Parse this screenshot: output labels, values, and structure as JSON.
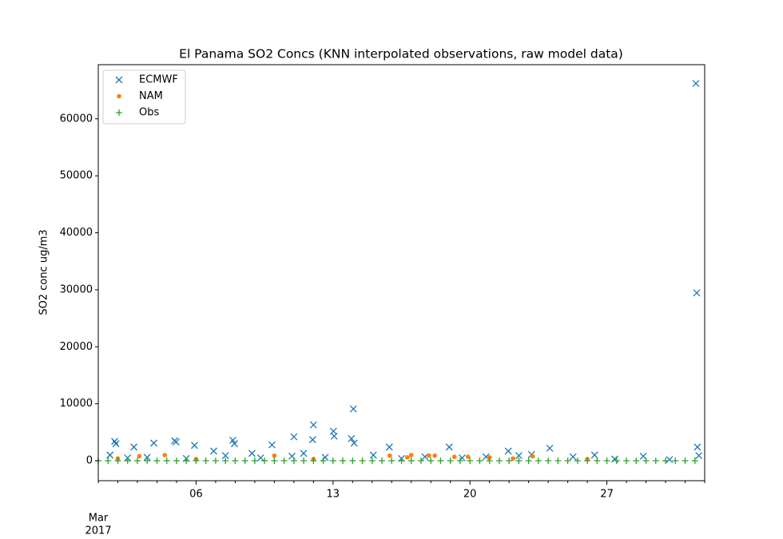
{
  "chart_data": {
    "type": "scatter",
    "title": "El Panama SO2 Concs (KNN interpolated observations, raw model data)",
    "ylabel": "SO2 conc ug/m3",
    "x_month": "Mar",
    "x_year": "2017",
    "xlim": [
      1,
      32
    ],
    "xticks": [
      {
        "value": 6,
        "label": "06"
      },
      {
        "value": 13,
        "label": "13"
      },
      {
        "value": 20,
        "label": "20"
      },
      {
        "value": 27,
        "label": "27"
      }
    ],
    "xminorticks": [
      1,
      2,
      3,
      4,
      5,
      7,
      8,
      9,
      10,
      11,
      12,
      14,
      15,
      16,
      17,
      18,
      19,
      21,
      22,
      23,
      24,
      25,
      26,
      28,
      29,
      30,
      31,
      32
    ],
    "ylim": [
      -3500,
      69500
    ],
    "yticks": [
      0,
      10000,
      20000,
      30000,
      40000,
      50000,
      60000
    ],
    "legend": "upper left",
    "series": [
      {
        "name": "ECMWF",
        "color": "#1f77b4",
        "marker": "x",
        "x": [
          31.55,
          31.59,
          14.04,
          12.0,
          13.02,
          13.06,
          11.0,
          1.84,
          1.9,
          4.9,
          4.98,
          7.88,
          7.96,
          3.84,
          2.82,
          5.92,
          9.88,
          11.96,
          13.94,
          14.08,
          15.88,
          18.94,
          21.96,
          24.08,
          31.63,
          6.9,
          8.86,
          15.06,
          20.82,
          23.15,
          25.27,
          26.37,
          28.86,
          10.9,
          1.6,
          7.5,
          2.5,
          3.5,
          5.5,
          9.3,
          11.5,
          12.6,
          16.5,
          17.7,
          19.6,
          22.5,
          27.4,
          30.2,
          31.7
        ],
        "values": [
          66200,
          29450,
          9100,
          6300,
          5200,
          4300,
          4200,
          3400,
          3000,
          3500,
          3300,
          3600,
          3000,
          3100,
          2400,
          2700,
          2800,
          3700,
          3900,
          3100,
          2400,
          2400,
          1700,
          2200,
          2400,
          1700,
          1300,
          1000,
          700,
          1100,
          700,
          1000,
          800,
          800,
          1000,
          900,
          500,
          600,
          400,
          500,
          1300,
          600,
          400,
          700,
          500,
          900,
          300,
          200,
          900
        ]
      },
      {
        "name": "NAM",
        "color": "#ff7f0e",
        "marker": "o",
        "x": [
          3.1,
          4.4,
          10.0,
          15.9,
          17.0,
          17.9,
          18.2,
          19.2,
          19.9,
          21.0,
          23.2,
          2.0,
          6.0,
          12.0,
          26.0,
          16.8,
          22.2
        ],
        "values": [
          800,
          1000,
          900,
          900,
          1000,
          900,
          900,
          700,
          700,
          600,
          800,
          400,
          300,
          300,
          300,
          600,
          400
        ]
      },
      {
        "name": "Obs",
        "color": "#2ca02c",
        "marker": "+",
        "x": [
          1.0,
          1.5,
          2.0,
          2.5,
          3.0,
          3.5,
          4.0,
          4.5,
          5.0,
          5.5,
          6.0,
          6.5,
          7.0,
          7.5,
          8.0,
          8.5,
          9.0,
          9.5,
          10.0,
          10.5,
          11.0,
          11.5,
          12.0,
          12.5,
          13.0,
          13.5,
          14.0,
          14.5,
          15.0,
          15.5,
          16.0,
          16.5,
          17.0,
          17.5,
          18.0,
          18.5,
          19.0,
          19.5,
          20.0,
          20.5,
          21.0,
          21.5,
          22.0,
          22.5,
          23.0,
          23.5,
          24.0,
          24.5,
          25.0,
          25.5,
          26.0,
          26.5,
          27.0,
          27.5,
          28.0,
          28.5,
          29.0,
          29.5,
          30.0,
          30.5,
          31.0,
          31.5
        ],
        "values": [
          0,
          0,
          0,
          0,
          0,
          0,
          0,
          0,
          0,
          0,
          0,
          0,
          0,
          0,
          0,
          0,
          0,
          0,
          0,
          0,
          0,
          0,
          0,
          0,
          0,
          0,
          0,
          0,
          0,
          0,
          0,
          0,
          0,
          0,
          0,
          0,
          0,
          0,
          0,
          0,
          0,
          0,
          0,
          0,
          0,
          0,
          0,
          0,
          0,
          0,
          0,
          0,
          0,
          0,
          0,
          0,
          0,
          0,
          0,
          0,
          0,
          0
        ]
      }
    ]
  }
}
